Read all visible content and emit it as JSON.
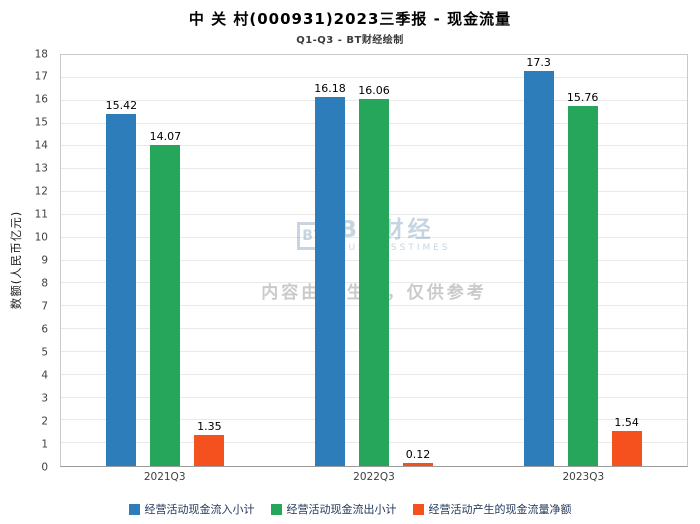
{
  "chart_data": {
    "type": "bar",
    "title": "中 关 村(000931)2023三季报 - 现金流量",
    "subtitle": "Q1-Q3 - BT财经绘制",
    "ylabel": "数额(人民币亿元)",
    "xlabel": "",
    "categories": [
      "2021Q3",
      "2022Q3",
      "2023Q3"
    ],
    "series": [
      {
        "name": "经营活动现金流入小计",
        "color": "#2d7dbb",
        "values": [
          15.42,
          16.18,
          17.3
        ]
      },
      {
        "name": "经营活动现金流出小计",
        "color": "#26a65b",
        "values": [
          14.07,
          16.06,
          15.76
        ]
      },
      {
        "name": "经营活动产生的现金流量净额",
        "color": "#f4511e",
        "values": [
          1.35,
          0.12,
          1.54
        ]
      }
    ],
    "ylim": [
      0,
      18
    ],
    "ytick_step": 1,
    "grid": true,
    "legend_position": "bottom"
  },
  "watermark": {
    "logo_icon_text": "BT",
    "logo_text": "BT财经",
    "logo_sub": "BUSINESSTIMES",
    "disclaimer": "内容由AI生成，仅供参考"
  }
}
